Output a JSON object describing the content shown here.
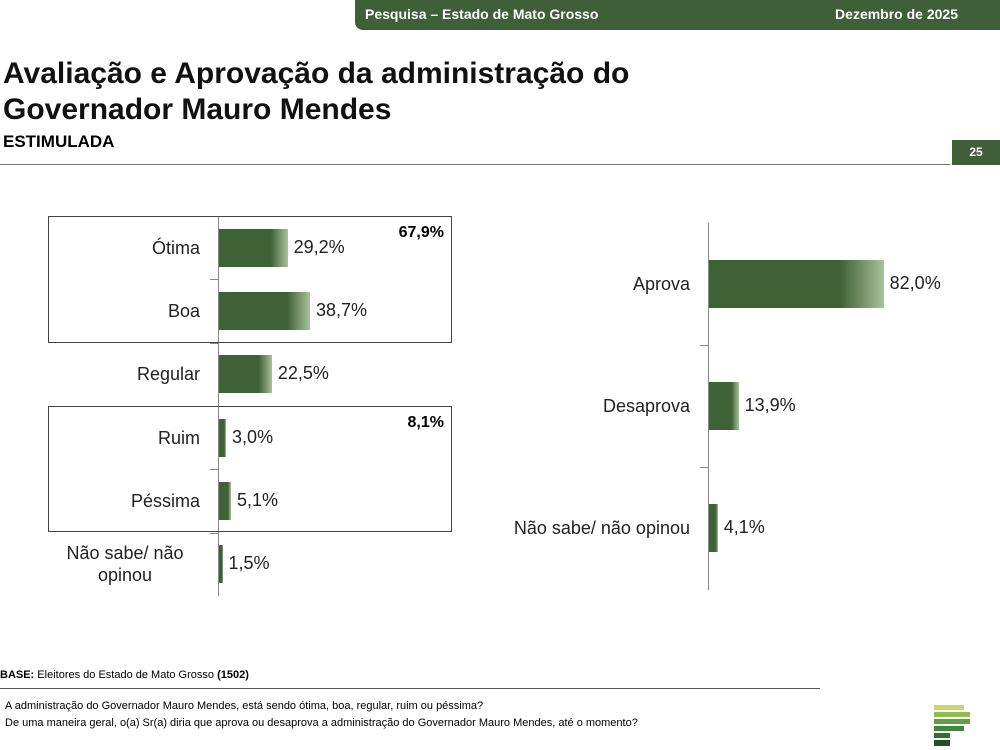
{
  "header": {
    "survey": "Pesquisa – Estado de Mato Grosso",
    "date": "Dezembro de 2025",
    "page": "25"
  },
  "title": "Avaliação e Aprovação da administração do Governador Mauro Mendes",
  "subtitle": "ESTIMULADA",
  "chart_data": [
    {
      "type": "bar",
      "orientation": "horizontal",
      "color": "#3f6136",
      "categories": [
        "Ótima",
        "Boa",
        "Regular",
        "Ruim",
        "Péssima",
        "Não sabe/ não opinou"
      ],
      "values": [
        29.2,
        38.7,
        22.5,
        3.0,
        5.1,
        1.5
      ],
      "value_labels": [
        "29,2%",
        "38,7%",
        "22,5%",
        "3,0%",
        "5,1%",
        "1,5%"
      ],
      "annotations": [
        {
          "value": 67.9,
          "label": "67,9%"
        },
        {
          "value": 8.1,
          "label": "8,1%"
        }
      ]
    },
    {
      "type": "bar",
      "orientation": "horizontal",
      "color": "#3f6136",
      "categories": [
        "Aprova",
        "Desaprova",
        "Não sabe/ não opinou"
      ],
      "values": [
        82.0,
        13.9,
        4.1
      ],
      "value_labels": [
        "82,0%",
        "13,9%",
        "4,1%"
      ]
    }
  ],
  "footer": {
    "base_label": "BASE:",
    "base_text": "Eleitores do Estado de Mato Grosso",
    "base_count": "(1502)",
    "questions": [
      "A administração do Governador Mauro Mendes, está sendo ótima, boa, regular, ruim ou péssima?",
      "De uma maneira geral, o(a) Sr(a) diria que aprova ou desaprova a administração do Governador Mauro Mendes, até o momento?"
    ]
  }
}
